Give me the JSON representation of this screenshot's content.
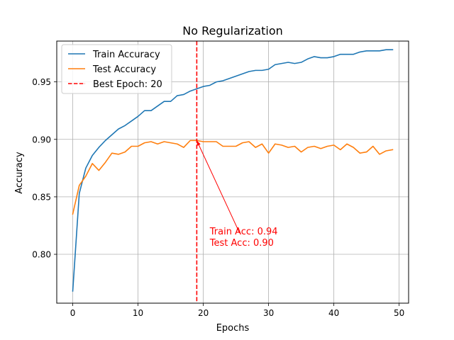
{
  "chart_data": {
    "type": "line",
    "title": "No Regularization",
    "xlabel": "Epochs",
    "ylabel": "Accuracy",
    "xlim": [
      -2.45,
      51.45
    ],
    "ylim": [
      0.7575,
      0.9855
    ],
    "xticks": [
      0,
      10,
      20,
      30,
      40,
      50
    ],
    "yticks": [
      0.8,
      0.85,
      0.9,
      0.95
    ],
    "xtick_labels": [
      "0",
      "10",
      "20",
      "30",
      "40",
      "50"
    ],
    "ytick_labels": [
      "0.80",
      "0.85",
      "0.90",
      "0.95"
    ],
    "grid": true,
    "legend_position": "top-left",
    "x": [
      0,
      1,
      2,
      3,
      4,
      5,
      6,
      7,
      8,
      9,
      10,
      11,
      12,
      13,
      14,
      15,
      16,
      17,
      18,
      19,
      20,
      21,
      22,
      23,
      24,
      25,
      26,
      27,
      28,
      29,
      30,
      31,
      32,
      33,
      34,
      35,
      36,
      37,
      38,
      39,
      40,
      41,
      42,
      43,
      44,
      45,
      46,
      47,
      48,
      49
    ],
    "series": [
      {
        "name": "Train Accuracy",
        "color": "#1f77b4",
        "style": "solid",
        "values": [
          0.768,
          0.853,
          0.875,
          0.886,
          0.893,
          0.899,
          0.904,
          0.909,
          0.912,
          0.916,
          0.92,
          0.925,
          0.925,
          0.929,
          0.933,
          0.933,
          0.938,
          0.939,
          0.942,
          0.944,
          0.946,
          0.947,
          0.95,
          0.951,
          0.953,
          0.955,
          0.957,
          0.959,
          0.96,
          0.96,
          0.961,
          0.965,
          0.966,
          0.967,
          0.966,
          0.967,
          0.97,
          0.972,
          0.971,
          0.971,
          0.972,
          0.974,
          0.974,
          0.974,
          0.976,
          0.977,
          0.977,
          0.977,
          0.978,
          0.978
        ]
      },
      {
        "name": "Test Accuracy",
        "color": "#ff7f0e",
        "style": "solid",
        "values": [
          0.835,
          0.86,
          0.868,
          0.879,
          0.873,
          0.88,
          0.888,
          0.887,
          0.889,
          0.894,
          0.894,
          0.897,
          0.898,
          0.896,
          0.898,
          0.897,
          0.896,
          0.893,
          0.899,
          0.899,
          0.898,
          0.898,
          0.898,
          0.894,
          0.894,
          0.894,
          0.897,
          0.898,
          0.893,
          0.896,
          0.888,
          0.896,
          0.895,
          0.893,
          0.894,
          0.889,
          0.893,
          0.894,
          0.892,
          0.894,
          0.895,
          0.891,
          0.896,
          0.893,
          0.888,
          0.889,
          0.894,
          0.887,
          0.89,
          0.891
        ]
      }
    ],
    "best_epoch": {
      "label": "Best Epoch: 20",
      "x": 19,
      "color": "#ff0000",
      "style": "dashed"
    },
    "annotation": {
      "lines": [
        "Train Acc: 0.94",
        "Test Acc: 0.90"
      ],
      "point": [
        19,
        0.899
      ],
      "text_pos": [
        21,
        0.808
      ],
      "color": "#ff0000"
    }
  }
}
